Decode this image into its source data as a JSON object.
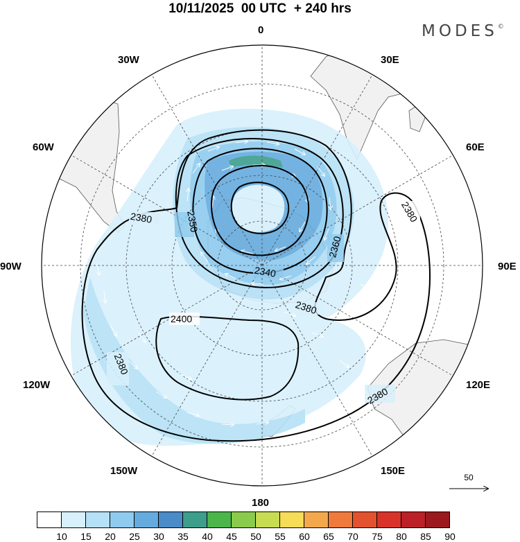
{
  "header": {
    "title": "10/11/2025  00 UTC  + 240 hrs",
    "brand": "MODES",
    "brand_mark": "©"
  },
  "map": {
    "projection": "south polar stereographic",
    "longitude_labels": [
      {
        "name": "lon-label-0",
        "text": "0"
      },
      {
        "name": "lon-label-30e",
        "text": "30E"
      },
      {
        "name": "lon-label-60e",
        "text": "60E"
      },
      {
        "name": "lon-label-90e",
        "text": "90E"
      },
      {
        "name": "lon-label-120e",
        "text": "120E"
      },
      {
        "name": "lon-label-150e",
        "text": "150E"
      },
      {
        "name": "lon-label-180",
        "text": "180"
      },
      {
        "name": "lon-label-150w",
        "text": "150W"
      },
      {
        "name": "lon-label-120w",
        "text": "120W"
      },
      {
        "name": "lon-label-90w",
        "text": "90W"
      },
      {
        "name": "lon-label-60w",
        "text": "60W"
      },
      {
        "name": "lon-label-30w",
        "text": "30W"
      }
    ],
    "contour_labels": [
      "2380",
      "2350",
      "2360",
      "2340",
      "2380",
      "2400",
      "2380",
      "2380",
      "2380"
    ],
    "colors": {
      "land": "#f1f1f1",
      "coast": "#555555",
      "contour": "#000000",
      "grid": "#444444",
      "vector": "#ffffff"
    }
  },
  "colorbar": {
    "ticks": [
      "10",
      "15",
      "20",
      "25",
      "30",
      "35",
      "40",
      "45",
      "50",
      "55",
      "60",
      "65",
      "70",
      "75",
      "80",
      "85",
      "90"
    ],
    "colors": [
      "#ffffff",
      "#d8f0fc",
      "#b5e0f6",
      "#8fcbef",
      "#66abde",
      "#4b8bc8",
      "#3d9e8c",
      "#4bb54a",
      "#8acb4c",
      "#c8dc52",
      "#f6dc57",
      "#f3a94b",
      "#ef7a3c",
      "#e3522f",
      "#d8332b",
      "#bb2127",
      "#9a1a1e"
    ]
  },
  "reference_vector": {
    "label": "50"
  }
}
